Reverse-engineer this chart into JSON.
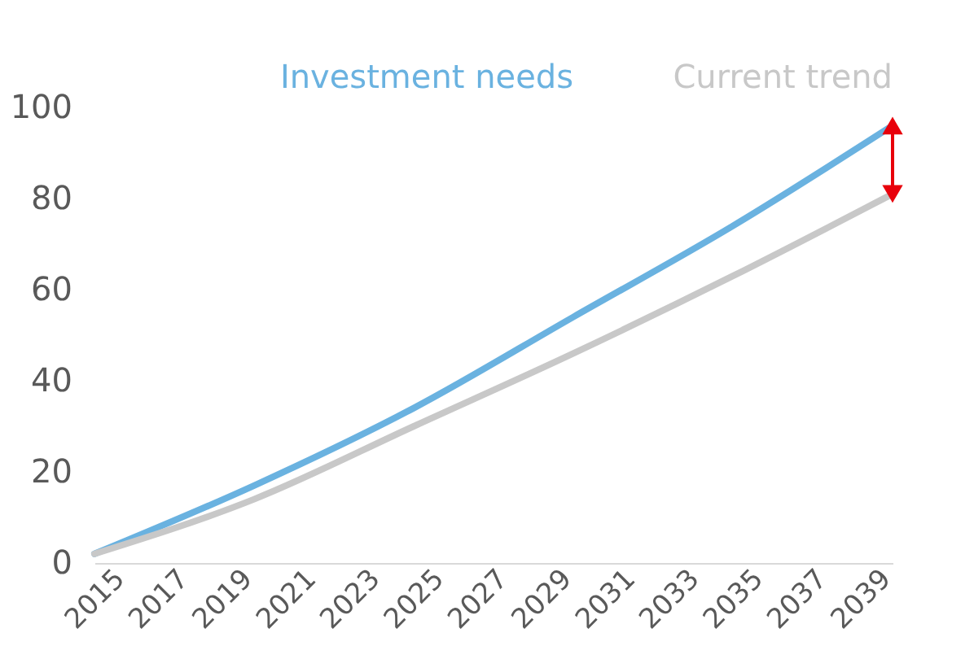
{
  "chart_data": {
    "type": "line",
    "x": [
      2015,
      2020,
      2025,
      2030,
      2035,
      2040
    ],
    "series": [
      {
        "name": "Investment needs",
        "color": "#6ab2e0",
        "values": [
          2,
          17,
          34,
          54,
          74,
          96
        ]
      },
      {
        "name": "Current trend",
        "color": "#c8c8c8",
        "values": [
          2,
          14,
          30,
          46,
          63,
          81
        ]
      }
    ],
    "xlim": [
      2015,
      2040
    ],
    "xticks": [
      2015,
      2017,
      2019,
      2021,
      2023,
      2025,
      2027,
      2029,
      2031,
      2033,
      2035,
      2037,
      2039
    ],
    "ylim": [
      0,
      100
    ],
    "yticks": [
      0,
      20,
      40,
      60,
      80,
      100
    ],
    "grid": false,
    "legend": "top",
    "marker": "none",
    "line_style": "solid"
  }
}
